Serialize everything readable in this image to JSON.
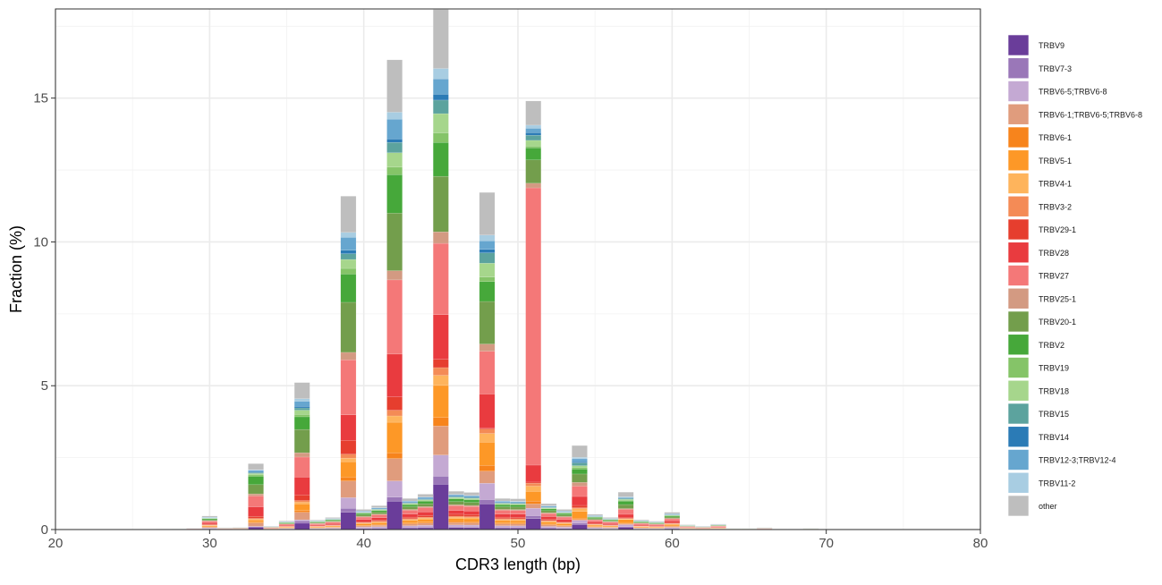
{
  "chart_data": {
    "type": "bar",
    "stacked": true,
    "xlabel": "CDR3 length (bp)",
    "ylabel": "Fraction (%)",
    "xlim": [
      20,
      80
    ],
    "ylim": [
      0,
      18.1
    ],
    "x_ticks": [
      "20",
      "30",
      "40",
      "50",
      "60",
      "70",
      "80"
    ],
    "x_tick_values": [
      20,
      30,
      40,
      50,
      60,
      70,
      80
    ],
    "y_ticks": [
      "0",
      "5",
      "10",
      "15"
    ],
    "y_tick_values": [
      0,
      5,
      10,
      15
    ],
    "grid": true,
    "legend_position": "right",
    "series": [
      {
        "name": "TRBV9",
        "color": "#6a3d9a"
      },
      {
        "name": "TRBV7-3",
        "color": "#9a77b8"
      },
      {
        "name": "TRBV6-5;TRBV6-8",
        "color": "#c4a9d3"
      },
      {
        "name": "TRBV6-1;TRBV6-5;TRBV6-8",
        "color": "#e09c7d"
      },
      {
        "name": "TRBV6-1",
        "color": "#f7841c"
      },
      {
        "name": "TRBV5-1",
        "color": "#fd9827"
      },
      {
        "name": "TRBV4-1",
        "color": "#feb45c"
      },
      {
        "name": "TRBV3-2",
        "color": "#f48b56"
      },
      {
        "name": "TRBV29-1",
        "color": "#e63e2e"
      },
      {
        "name": "TRBV28",
        "color": "#e93b3f"
      },
      {
        "name": "TRBV27",
        "color": "#f47878"
      },
      {
        "name": "TRBV25-1",
        "color": "#d39a82"
      },
      {
        "name": "TRBV20-1",
        "color": "#739e4c"
      },
      {
        "name": "TRBV2",
        "color": "#46a83a"
      },
      {
        "name": "TRBV19",
        "color": "#85c468"
      },
      {
        "name": "TRBV18",
        "color": "#a6d68c"
      },
      {
        "name": "TRBV15",
        "color": "#5ca39e"
      },
      {
        "name": "TRBV14",
        "color": "#2b7bb6"
      },
      {
        "name": "TRBV12-3;TRBV12-4",
        "color": "#66a6cf"
      },
      {
        "name": "TRBV11-2",
        "color": "#a8cde2"
      },
      {
        "name": "other",
        "color": "#bebebe"
      }
    ],
    "major_bars_cumulative_tops": {
      "33": [
        0.08,
        0.1,
        0.11,
        0.23,
        0.26,
        0.33,
        0.36,
        0.39,
        0.46,
        0.79,
        1.17,
        1.24,
        1.56,
        1.85,
        1.9,
        1.95,
        1.98,
        2.01,
        2.06,
        2.08,
        2.29
      ],
      "36": [
        0.22,
        0.3,
        0.34,
        0.6,
        0.66,
        0.89,
        0.95,
        1.01,
        1.2,
        1.82,
        2.52,
        2.67,
        3.48,
        3.92,
        4.0,
        4.15,
        4.23,
        4.28,
        4.46,
        4.55,
        5.11
      ],
      "39": [
        0.6,
        0.74,
        1.11,
        1.69,
        1.82,
        2.36,
        2.48,
        2.62,
        3.1,
        3.99,
        5.9,
        6.16,
        7.9,
        8.88,
        9.08,
        9.39,
        9.59,
        9.71,
        10.16,
        10.33,
        11.59
      ],
      "42": [
        0.98,
        1.13,
        1.69,
        2.47,
        2.67,
        3.73,
        3.95,
        4.15,
        4.61,
        6.1,
        8.68,
        9.0,
        11.0,
        12.34,
        12.6,
        13.1,
        13.46,
        13.58,
        14.27,
        14.51,
        16.33
      ],
      "45": [
        1.57,
        1.85,
        2.59,
        3.6,
        3.9,
        5.01,
        5.36,
        5.63,
        5.92,
        7.47,
        9.95,
        10.35,
        12.28,
        13.46,
        13.79,
        14.46,
        14.93,
        15.13,
        15.67,
        16.03,
        18.08
      ],
      "48": [
        0.89,
        1.04,
        1.61,
        2.03,
        2.23,
        3.04,
        3.34,
        3.49,
        3.52,
        4.71,
        6.2,
        6.45,
        7.93,
        8.62,
        8.78,
        9.26,
        9.62,
        9.74,
        10.04,
        10.24,
        11.72
      ],
      "51": [
        0.38,
        0.48,
        0.74,
        0.89,
        0.99,
        1.33,
        1.51,
        1.61,
        1.65,
        2.24,
        11.88,
        12.04,
        12.85,
        13.27,
        13.33,
        13.53,
        13.71,
        13.8,
        13.95,
        14.06,
        14.9
      ],
      "54": [
        0.17,
        0.22,
        0.32,
        0.35,
        0.39,
        0.63,
        0.73,
        0.76,
        0.84,
        1.15,
        1.51,
        1.64,
        1.93,
        2.1,
        2.16,
        2.22,
        2.32,
        2.36,
        2.46,
        2.51,
        2.92
      ],
      "57": [
        0.08,
        0.1,
        0.17,
        0.2,
        0.22,
        0.35,
        0.37,
        0.39,
        0.42,
        0.53,
        0.7,
        0.73,
        0.87,
        0.99,
        1.02,
        1.05,
        1.08,
        1.1,
        1.12,
        1.14,
        1.3
      ]
    },
    "minor_bar_totals": {
      "27": 0.02,
      "28": 0.03,
      "29": 0.05,
      "30": 0.47,
      "31": 0.07,
      "32": 0.08,
      "34": 0.12,
      "35": 0.3,
      "37": 0.33,
      "38": 0.42,
      "40": 0.7,
      "41": 0.83,
      "43": 1.08,
      "44": 1.23,
      "46": 1.33,
      "47": 1.29,
      "49": 1.08,
      "50": 1.07,
      "52": 0.9,
      "53": 0.7,
      "55": 0.53,
      "56": 0.42,
      "58": 0.34,
      "59": 0.29,
      "60": 0.6,
      "61": 0.17,
      "62": 0.12,
      "63": 0.19,
      "64": 0.04,
      "65": 0.04,
      "66": 0.07,
      "67": 0.02,
      "68": 0.02,
      "69": 0.04
    },
    "minor_bar_composition": [
      0.05,
      0.02,
      0.05,
      0.06,
      0.03,
      0.08,
      0.03,
      0.03,
      0.05,
      0.1,
      0.12,
      0.03,
      0.08,
      0.07,
      0.02,
      0.02,
      0.02,
      0.02,
      0.03,
      0.01,
      0.08
    ]
  }
}
